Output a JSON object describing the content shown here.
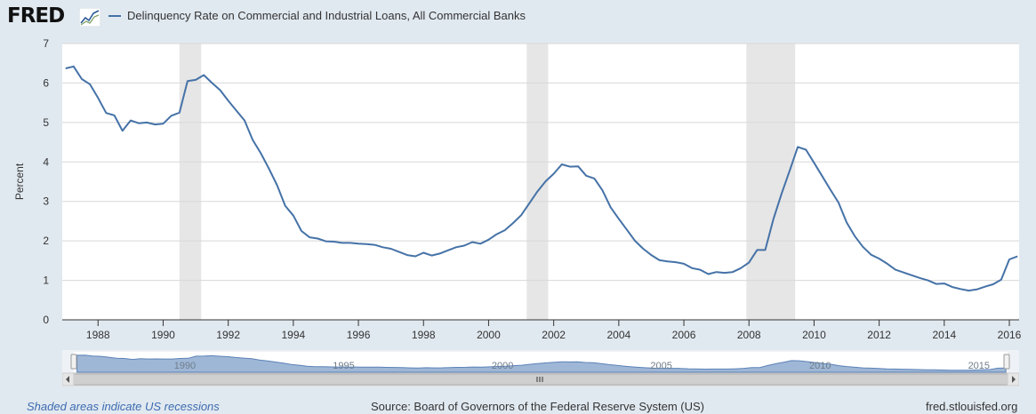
{
  "header": {
    "logo_text": "FRED",
    "logo_icon": "fred-line-chart-icon",
    "series_title": "Delinquency Rate on Commercial and Industrial Loans, All Commercial Banks"
  },
  "footer": {
    "recession_note": "Shaded areas indicate US recessions",
    "source": "Source: Board of Governors of the Federal Reserve System (US)",
    "site": "fred.stlouisfed.org"
  },
  "navigator": {
    "labels": [
      "1990",
      "1995",
      "2000",
      "2005",
      "2010",
      "2015"
    ],
    "left_arrow_icon": "chevron-left-icon",
    "right_arrow_icon": "chevron-right-icon",
    "grip_icon": "scrollbar-grip-icon"
  },
  "colors": {
    "line": "#4572a7",
    "recession_shade": "#e6e6e6",
    "background": "#e1e9f0",
    "plot_background": "#ffffff"
  },
  "chart_data": {
    "type": "line",
    "title": "Delinquency Rate on Commercial and Industrial Loans, All Commercial Banks",
    "xlabel": "",
    "ylabel": "Percent",
    "xlim": [
      1986.9,
      2016.3
    ],
    "ylim": [
      0,
      7
    ],
    "y_ticks": [
      0,
      1,
      2,
      3,
      4,
      5,
      6,
      7
    ],
    "x_ticks": [
      1988,
      1990,
      1992,
      1994,
      1996,
      1998,
      2000,
      2002,
      2004,
      2006,
      2008,
      2010,
      2012,
      2014,
      2016
    ],
    "grid": true,
    "recessions": [
      [
        1990.5,
        1991.17
      ],
      [
        2001.17,
        2001.83
      ],
      [
        2007.92,
        2009.42
      ]
    ],
    "series": [
      {
        "name": "Delinquency Rate on Commercial and Industrial Loans, All Commercial Banks",
        "x": [
          1987.0,
          1987.25,
          1987.5,
          1987.75,
          1988.0,
          1988.25,
          1988.5,
          1988.75,
          1989.0,
          1989.25,
          1989.5,
          1989.75,
          1990.0,
          1990.25,
          1990.5,
          1990.75,
          1991.0,
          1991.25,
          1991.5,
          1991.75,
          1992.0,
          1992.25,
          1992.5,
          1992.75,
          1993.0,
          1993.25,
          1993.5,
          1993.75,
          1994.0,
          1994.25,
          1994.5,
          1994.75,
          1995.0,
          1995.25,
          1995.5,
          1995.75,
          1996.0,
          1996.25,
          1996.5,
          1996.75,
          1997.0,
          1997.25,
          1997.5,
          1997.75,
          1998.0,
          1998.25,
          1998.5,
          1998.75,
          1999.0,
          1999.25,
          1999.5,
          1999.75,
          2000.0,
          2000.25,
          2000.5,
          2000.75,
          2001.0,
          2001.25,
          2001.5,
          2001.75,
          2002.0,
          2002.25,
          2002.5,
          2002.75,
          2003.0,
          2003.25,
          2003.5,
          2003.75,
          2004.0,
          2004.25,
          2004.5,
          2004.75,
          2005.0,
          2005.25,
          2005.5,
          2005.75,
          2006.0,
          2006.25,
          2006.5,
          2006.75,
          2007.0,
          2007.25,
          2007.5,
          2007.75,
          2008.0,
          2008.25,
          2008.5,
          2008.75,
          2009.0,
          2009.25,
          2009.5,
          2009.75,
          2010.0,
          2010.25,
          2010.5,
          2010.75,
          2011.0,
          2011.25,
          2011.5,
          2011.75,
          2012.0,
          2012.25,
          2012.5,
          2012.75,
          2013.0,
          2013.25,
          2013.5,
          2013.75,
          2014.0,
          2014.25,
          2014.5,
          2014.75,
          2015.0,
          2015.25,
          2015.5,
          2015.75,
          2016.0,
          2016.25
        ],
        "values": [
          6.37,
          6.42,
          6.1,
          5.97,
          5.62,
          5.24,
          5.18,
          4.79,
          5.05,
          4.98,
          5.0,
          4.95,
          4.97,
          5.17,
          5.25,
          6.05,
          6.08,
          6.2,
          6.0,
          5.82,
          5.55,
          5.3,
          5.05,
          4.56,
          4.22,
          3.83,
          3.41,
          2.89,
          2.64,
          2.25,
          2.09,
          2.06,
          1.99,
          1.98,
          1.95,
          1.95,
          1.93,
          1.92,
          1.9,
          1.84,
          1.8,
          1.72,
          1.64,
          1.61,
          1.7,
          1.63,
          1.68,
          1.76,
          1.84,
          1.88,
          1.97,
          1.93,
          2.03,
          2.17,
          2.27,
          2.45,
          2.65,
          2.95,
          3.25,
          3.51,
          3.7,
          3.94,
          3.88,
          3.89,
          3.65,
          3.58,
          3.28,
          2.85,
          2.56,
          2.28,
          2.0,
          1.8,
          1.64,
          1.51,
          1.48,
          1.46,
          1.42,
          1.31,
          1.27,
          1.16,
          1.21,
          1.19,
          1.21,
          1.31,
          1.45,
          1.77,
          1.77,
          2.55,
          3.19,
          3.78,
          4.38,
          4.31,
          3.98,
          3.64,
          3.3,
          2.97,
          2.47,
          2.12,
          1.85,
          1.65,
          1.55,
          1.42,
          1.27,
          1.2,
          1.13,
          1.06,
          1.0,
          0.91,
          0.92,
          0.83,
          0.78,
          0.74,
          0.77,
          0.84,
          0.9,
          1.02,
          1.53,
          1.61
        ]
      }
    ]
  }
}
